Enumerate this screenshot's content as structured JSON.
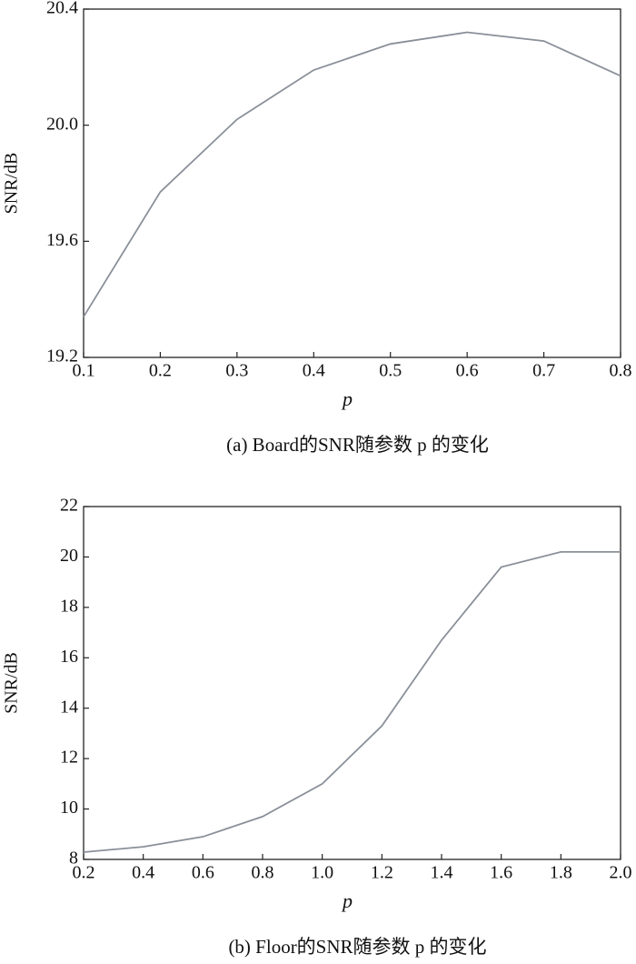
{
  "chart_data": [
    {
      "type": "line",
      "caption": "(a) Board的SNR随参数 p 的变化",
      "x_label": "p",
      "y_label": "SNR/dB",
      "x": [
        0.1,
        0.2,
        0.3,
        0.4,
        0.5,
        0.6,
        0.7,
        0.8
      ],
      "series": [
        {
          "color": "#8a9099",
          "values": [
            19.34,
            19.77,
            20.02,
            20.19,
            20.28,
            20.32,
            20.29,
            20.17
          ]
        }
      ],
      "xlim": [
        0.1,
        0.8
      ],
      "xticks": [
        0.1,
        0.2,
        0.3,
        0.4,
        0.5,
        0.6,
        0.7,
        0.8
      ],
      "ylim": [
        19.2,
        20.4
      ],
      "yticks": [
        19.2,
        19.6,
        {
          "value": 20,
          "label": "20.0"
        },
        20.4
      ],
      "grid": false
    },
    {
      "type": "line",
      "caption": "(b) Floor的SNR随参数 p 的变化",
      "x_label": "p",
      "y_label": "SNR/dB",
      "x": [
        0.2,
        0.4,
        0.6,
        0.8,
        1.0,
        1.2,
        1.4,
        1.6,
        1.8,
        2.0
      ],
      "series": [
        {
          "color": "#8a9099",
          "values": [
            8.29,
            8.5,
            8.9,
            9.7,
            11.0,
            13.3,
            16.7,
            19.6,
            20.2,
            20.2
          ]
        }
      ],
      "xlim": [
        0.2,
        2.0
      ],
      "xticks": [
        0.2,
        0.4,
        0.6,
        0.8,
        {
          "value": 1,
          "label": "1.0"
        },
        1.2,
        1.4,
        1.6,
        1.8,
        {
          "value": 2,
          "label": "2.0"
        }
      ],
      "ylim": [
        8,
        22
      ],
      "yticks": [
        8,
        10,
        12,
        14,
        16,
        18,
        20,
        22
      ],
      "grid": false
    }
  ]
}
